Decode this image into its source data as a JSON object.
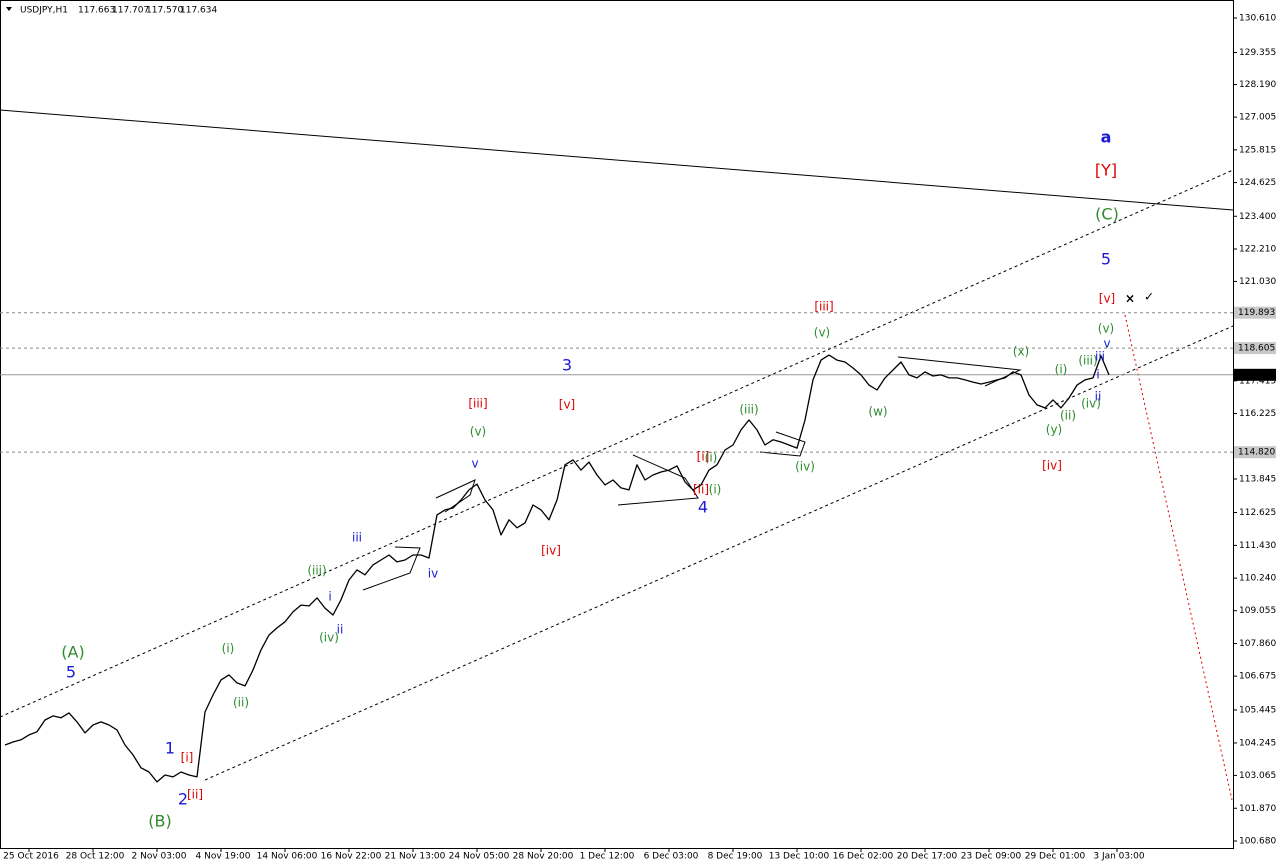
{
  "chart_data": {
    "type": "line",
    "title": "USDJPY,H1",
    "ohlc": [
      117.663,
      117.707,
      117.57,
      117.634
    ],
    "ohlc_labels": [
      "117.663",
      "117.707",
      "117.570",
      "117.634"
    ],
    "categories": [
      null,
      null,
      null,
      "25 Oct 2016",
      null,
      null,
      null,
      null,
      null,
      null,
      null,
      "28 Oct 12:00",
      null,
      null,
      null,
      null,
      null,
      null,
      null,
      "2 Nov 03:00",
      null,
      null,
      null,
      null,
      null,
      null,
      null,
      "4 Nov 19:00",
      null,
      null,
      null,
      null,
      null,
      null,
      null,
      "14 Nov 06:00",
      null,
      null,
      null,
      null,
      null,
      null,
      null,
      "16 Nov 22:00",
      null,
      null,
      null,
      null,
      null,
      null,
      null,
      "21 Nov 13:00",
      null,
      null,
      null,
      null,
      null,
      null,
      null,
      "24 Nov 05:00",
      null,
      null,
      null,
      null,
      null,
      null,
      null,
      "28 Nov 20:00",
      null,
      null,
      null,
      null,
      null,
      null,
      null,
      "1 Dec 12:00",
      null,
      null,
      null,
      null,
      null,
      null,
      null,
      "6 Dec 03:00",
      null,
      null,
      null,
      null,
      null,
      null,
      null,
      "8 Dec 19:00",
      null,
      null,
      null,
      null,
      null,
      null,
      null,
      "13 Dec 10:00",
      null,
      null,
      null,
      null,
      null,
      null,
      null,
      "16 Dec 02:00",
      null,
      null,
      null,
      null,
      null,
      null,
      null,
      "20 Dec 17:00",
      null,
      null,
      null,
      null,
      null,
      null,
      null,
      "23 Dec 09:00",
      null,
      null,
      null,
      null,
      null,
      null,
      null,
      "29 Dec 01:00",
      null,
      null,
      null,
      null,
      null,
      null,
      null,
      "3 Jan 03:00"
    ],
    "series": [
      {
        "name": "USDJPY",
        "color": "#000000",
        "values": [
          104.17,
          104.28,
          104.36,
          104.54,
          104.65,
          105.08,
          105.23,
          105.16,
          105.34,
          105.01,
          104.61,
          104.9,
          105.01,
          104.9,
          104.72,
          104.17,
          103.81,
          103.34,
          103.19,
          102.83,
          103.08,
          103.01,
          103.19,
          103.08,
          103.01,
          105.37,
          105.99,
          106.54,
          106.72,
          106.43,
          106.32,
          106.9,
          107.63,
          108.17,
          108.43,
          108.65,
          109.01,
          109.26,
          109.23,
          109.52,
          109.15,
          108.9,
          109.45,
          110.17,
          110.54,
          110.36,
          110.72,
          110.9,
          111.08,
          110.83,
          110.9,
          111.08,
          111.08,
          110.97,
          112.54,
          112.72,
          112.79,
          113.08,
          113.45,
          113.66,
          113.08,
          112.72,
          111.81,
          112.36,
          112.07,
          112.25,
          112.9,
          112.72,
          112.36,
          113.08,
          114.36,
          114.54,
          114.17,
          114.46,
          113.99,
          113.63,
          113.81,
          113.52,
          113.45,
          114.36,
          113.81,
          113.99,
          114.1,
          114.17,
          114.32,
          113.74,
          113.45,
          113.63,
          114.17,
          114.36,
          114.9,
          115.08,
          115.63,
          115.99,
          115.63,
          115.08,
          115.27,
          115.19,
          115.08,
          114.97,
          115.99,
          117.45,
          118.17,
          118.35,
          118.17,
          118.1,
          117.88,
          117.63,
          117.26,
          117.08,
          117.52,
          117.81,
          118.1,
          117.63,
          117.52,
          117.74,
          117.59,
          117.63,
          117.52,
          117.52,
          117.45,
          117.37,
          117.3,
          117.37,
          117.45,
          117.52,
          117.74,
          117.63,
          116.9,
          116.54,
          116.43,
          116.72,
          116.43,
          116.79,
          117.26,
          117.45,
          117.52,
          118.32,
          117.63,
          null
        ]
      }
    ],
    "ylim": [
      100.425,
      131.265
    ],
    "yticks": [
      {
        "value": 130.61,
        "label": "130.610"
      },
      129.355,
      {
        "value": 128.19,
        "label": "128.190"
      },
      127.005,
      125.815,
      124.625,
      {
        "value": 123.4,
        "label": "123.400"
      },
      {
        "value": 122.21,
        "label": "122.210"
      },
      {
        "value": 121.03,
        "label": "121.030"
      },
      117.415,
      116.225,
      113.845,
      112.625,
      {
        "value": 111.43,
        "label": "111.430"
      },
      {
        "value": 110.24,
        "label": "110.240"
      },
      109.055,
      {
        "value": 107.86,
        "label": "107.860"
      },
      106.675,
      105.445,
      104.245,
      103.065,
      {
        "value": 101.87,
        "label": "101.870"
      },
      {
        "value": 100.68,
        "label": "100.680"
      }
    ],
    "price_levels": [
      119.893,
      118.605,
      117.634,
      {
        "value": 114.82,
        "label": "114.820"
      }
    ],
    "annotations": [
      {
        "text": "(A)",
        "color": "#2e8b2e"
      },
      {
        "text": "5",
        "color": "#1a1ad6"
      },
      {
        "text": "1",
        "color": "#1a1ad6"
      },
      {
        "text": "[i]",
        "color": "#e00000"
      },
      {
        "text": "2",
        "color": "#1a1ad6"
      },
      {
        "text": "[ii]",
        "color": "#e00000"
      },
      {
        "text": "(B)",
        "color": "#2e8b2e"
      },
      {
        "text": "(i)",
        "color": "#2e8b2e"
      },
      {
        "text": "(ii)",
        "color": "#2e8b2e"
      },
      {
        "text": "(iii)",
        "color": "#2e8b2e"
      },
      {
        "text": "(iv)",
        "color": "#2e8b2e"
      },
      {
        "text": "i",
        "color": "#1a1ad6"
      },
      {
        "text": "ii",
        "color": "#1a1ad6"
      },
      {
        "text": "iii",
        "color": "#1a1ad6"
      },
      {
        "text": "iv",
        "color": "#1a1ad6"
      },
      {
        "text": "v",
        "color": "#1a1ad6"
      },
      {
        "text": "(v)",
        "color": "#2e8b2e"
      },
      {
        "text": "[iii]",
        "color": "#e00000"
      },
      {
        "text": "[iv]",
        "color": "#e00000"
      },
      {
        "text": "3",
        "color": "#1a1ad6"
      },
      {
        "text": "[v]",
        "color": "#e00000"
      },
      {
        "text": "[i]",
        "color": "#e00000"
      },
      {
        "text": "(i)",
        "color": "#2e8b2e"
      },
      {
        "text": "[ii]",
        "color": "#e00000"
      },
      {
        "text": "(i)",
        "color": "#2e8b2e"
      },
      {
        "text": "4",
        "color": "#1a1ad6"
      },
      {
        "text": "(iii)",
        "color": "#2e8b2e"
      },
      {
        "text": "(iv)",
        "color": "#2e8b2e"
      },
      {
        "text": "[iii]",
        "color": "#e00000"
      },
      {
        "text": "(v)",
        "color": "#2e8b2e"
      },
      {
        "text": "(w)",
        "color": "#2e8b2e"
      },
      {
        "text": "(x)",
        "color": "#2e8b2e"
      },
      {
        "text": "[iv]",
        "color": "#e00000"
      },
      {
        "text": "(i)",
        "color": "#2e8b2e"
      },
      {
        "text": "(y)",
        "color": "#2e8b2e"
      },
      {
        "text": "(ii)",
        "color": "#2e8b2e"
      },
      {
        "text": "(iii)",
        "color": "#2e8b2e"
      },
      {
        "text": "(iv)",
        "color": "#2e8b2e"
      },
      {
        "text": "i",
        "color": "#1a1ad6"
      },
      {
        "text": "ii",
        "color": "#1a1ad6"
      },
      {
        "text": "iii",
        "color": "#1a1ad6"
      },
      {
        "text": "v",
        "color": "#1a1ad6"
      },
      {
        "text": "(v)",
        "color": "#2e8b2e"
      },
      {
        "text": "[v]",
        "color": "#e00000"
      },
      {
        "text": "5",
        "color": "#1a1ad6"
      },
      {
        "text": "(C)",
        "color": "#2e8b2e"
      },
      {
        "text": "[Y]",
        "color": "#e00000"
      },
      {
        "text": "a",
        "color": "#1a1ad6"
      },
      {
        "text": "×",
        "color": "#000000"
      },
      {
        "text": "✓",
        "color": "#000000"
      }
    ]
  }
}
